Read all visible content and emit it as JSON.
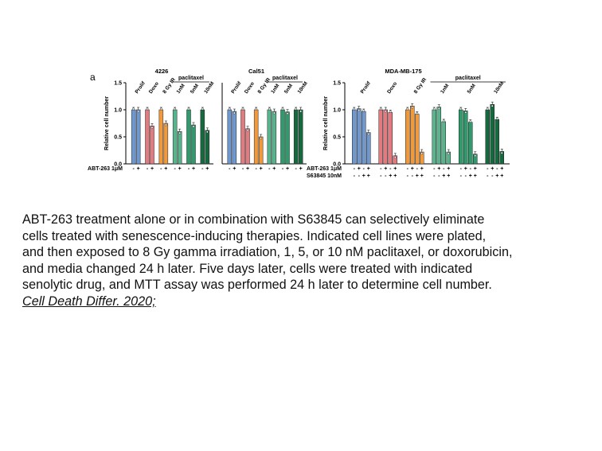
{
  "panel_label": "a",
  "colors": {
    "prolif": "#6f98cf",
    "doxo": "#e27b80",
    "ir": "#ef9a3f",
    "ptx1": "#59b48e",
    "ptx5": "#2f9a6b",
    "ptx10": "#17683f"
  },
  "chart_data": [
    {
      "type": "bar",
      "title": "4226",
      "ylabel": "Relative cell number",
      "ylim": [
        0,
        1.5
      ],
      "yticks": [
        "0.0",
        "0.5",
        "1.0",
        "1.5"
      ],
      "group_labels": [
        "Prolif",
        "Doxo",
        "8 Gy IR",
        "1nM",
        "5nM",
        "10nM"
      ],
      "bracket_label": "paclitaxel",
      "bracket_groups": [
        3,
        5
      ],
      "treatment_rows": [
        {
          "label": "ABT-263 1μM",
          "signs": [
            "-",
            "+"
          ]
        }
      ],
      "values": [
        [
          1.0,
          1.0
        ],
        [
          1.0,
          0.7
        ],
        [
          1.0,
          0.75
        ],
        [
          1.0,
          0.6
        ],
        [
          1.0,
          0.72
        ],
        [
          1.0,
          0.62
        ]
      ]
    },
    {
      "type": "bar",
      "title": "Cal51",
      "ylim": [
        0,
        1.5
      ],
      "group_labels": [
        "Prolif",
        "Doxo",
        "8 Gy IR",
        "1nM",
        "5nM",
        "10nM"
      ],
      "bracket_label": "paclitaxel",
      "bracket_groups": [
        3,
        5
      ],
      "treatment_rows": [
        {
          "signs": [
            "-",
            "+"
          ]
        }
      ],
      "values": [
        [
          1.0,
          0.97
        ],
        [
          1.0,
          0.65
        ],
        [
          1.0,
          0.5
        ],
        [
          1.0,
          0.97
        ],
        [
          1.0,
          0.96
        ],
        [
          1.0,
          1.0
        ]
      ]
    },
    {
      "type": "bar",
      "title": "MDA-MB-175",
      "ylabel": "Relative cell number",
      "ylim": [
        0,
        1.5
      ],
      "yticks": [
        "0.0",
        "0.5",
        "1.0",
        "1.5"
      ],
      "group_labels": [
        "Prolif",
        "Doxo",
        "8 Gy IR",
        "1nM",
        "5nM",
        "10nM"
      ],
      "bracket_label": "paclitaxel",
      "bracket_groups": [
        3,
        5
      ],
      "treatment_rows": [
        {
          "label": "ABT-263 1μM",
          "signs": [
            "-",
            "+",
            "-",
            "+"
          ]
        },
        {
          "label": "S63845 10nM",
          "signs": [
            "-",
            "-",
            "+",
            "+"
          ]
        }
      ],
      "values": [
        [
          1.0,
          1.02,
          0.97,
          0.58
        ],
        [
          1.0,
          1.0,
          0.95,
          0.15
        ],
        [
          1.0,
          1.07,
          0.92,
          0.22
        ],
        [
          1.0,
          1.05,
          0.78,
          0.22
        ],
        [
          1.0,
          0.98,
          0.77,
          0.18
        ],
        [
          1.0,
          1.1,
          0.82,
          0.23
        ]
      ]
    }
  ],
  "caption": {
    "lines": [
      "ABT-263 treatment alone or in combination with S63845 can selectively eliminate",
      "cells treated with senescence-inducing therapies. Indicated cell lines were plated,",
      "and then exposed to 8 Gy gamma irradiation, 1, 5, or 10 nM paclitaxel, or doxorubicin,",
      "and media changed 24 h later. Five days later, cells were treated with indicated",
      "senolytic drug, and MTT assay was performed 24 h later to determine cell number."
    ],
    "citation": "Cell Death Differ. 2020;"
  }
}
